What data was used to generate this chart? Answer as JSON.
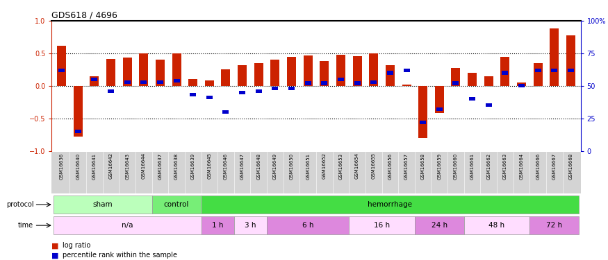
{
  "title": "GDS618 / 4696",
  "samples": [
    "GSM16636",
    "GSM16640",
    "GSM16641",
    "GSM16642",
    "GSM16643",
    "GSM16644",
    "GSM16637",
    "GSM16638",
    "GSM16639",
    "GSM16645",
    "GSM16646",
    "GSM16647",
    "GSM16648",
    "GSM16649",
    "GSM16650",
    "GSM16651",
    "GSM16652",
    "GSM16653",
    "GSM16654",
    "GSM16655",
    "GSM16656",
    "GSM16657",
    "GSM16658",
    "GSM16659",
    "GSM16660",
    "GSM16661",
    "GSM16662",
    "GSM16663",
    "GSM16664",
    "GSM16666",
    "GSM16667",
    "GSM16668"
  ],
  "log_ratio": [
    0.62,
    -0.78,
    0.15,
    0.41,
    0.43,
    0.5,
    0.4,
    0.5,
    0.1,
    0.08,
    0.25,
    0.32,
    0.35,
    0.4,
    0.45,
    0.47,
    0.38,
    0.48,
    0.46,
    0.5,
    0.32,
    0.02,
    -0.8,
    -0.42,
    0.28,
    0.2,
    0.15,
    0.45,
    0.05,
    0.35,
    0.88,
    0.78
  ],
  "percentile": [
    0.62,
    0.15,
    0.55,
    0.46,
    0.53,
    0.53,
    0.53,
    0.54,
    0.43,
    0.41,
    0.3,
    0.45,
    0.46,
    0.48,
    0.48,
    0.52,
    0.52,
    0.55,
    0.52,
    0.53,
    0.6,
    0.62,
    0.22,
    0.32,
    0.52,
    0.4,
    0.35,
    0.6,
    0.5,
    0.62,
    0.62,
    0.62
  ],
  "protocol_groups": [
    {
      "label": "sham",
      "start": 0,
      "end": 6,
      "color": "#bbffbb"
    },
    {
      "label": "control",
      "start": 6,
      "end": 9,
      "color": "#77ee77"
    },
    {
      "label": "hemorrhage",
      "start": 9,
      "end": 32,
      "color": "#44dd44"
    }
  ],
  "time_groups": [
    {
      "label": "n/a",
      "start": 0,
      "end": 9,
      "color": "#ffddff"
    },
    {
      "label": "1 h",
      "start": 9,
      "end": 11,
      "color": "#dd88dd"
    },
    {
      "label": "3 h",
      "start": 11,
      "end": 13,
      "color": "#ffddff"
    },
    {
      "label": "6 h",
      "start": 13,
      "end": 18,
      "color": "#dd88dd"
    },
    {
      "label": "16 h",
      "start": 18,
      "end": 22,
      "color": "#ffddff"
    },
    {
      "label": "24 h",
      "start": 22,
      "end": 25,
      "color": "#dd88dd"
    },
    {
      "label": "48 h",
      "start": 25,
      "end": 29,
      "color": "#ffddff"
    },
    {
      "label": "72 h",
      "start": 29,
      "end": 32,
      "color": "#dd88dd"
    }
  ],
  "bar_color": "#cc2200",
  "dot_color": "#0000cc",
  "label_bg": "#d4d4d4",
  "ylim": [
    -1,
    1
  ],
  "yticks_left": [
    -1,
    -0.5,
    0,
    0.5,
    1
  ],
  "yticks_right": [
    0,
    25,
    50,
    75,
    100
  ],
  "hlines": [
    -0.5,
    0.0,
    0.5
  ],
  "bg_color": "#ffffff",
  "left_color": "#cc2200",
  "right_color": "#0000cc"
}
